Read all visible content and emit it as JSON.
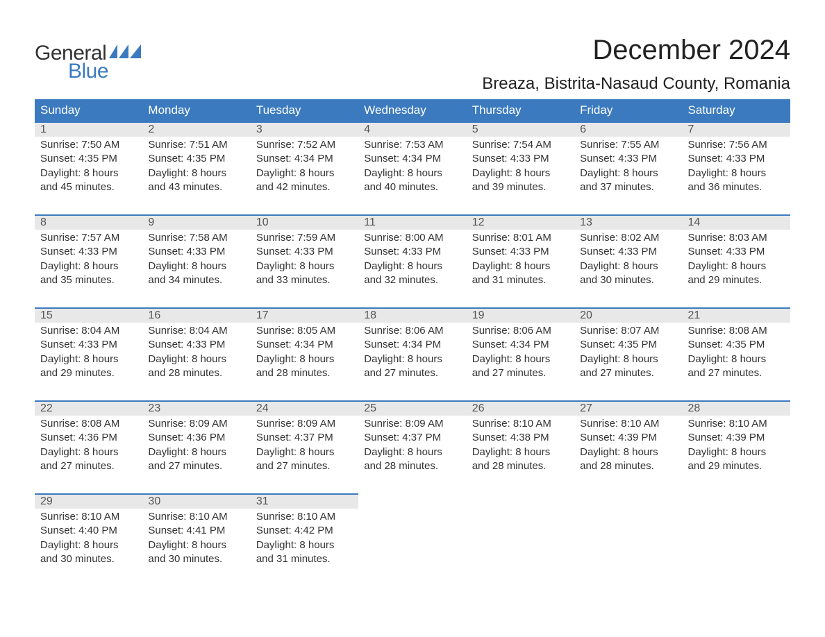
{
  "logo": {
    "text_general": "General",
    "text_blue": "Blue",
    "flag_color": "#3b7abf"
  },
  "header": {
    "month_title": "December 2024",
    "location": "Breaza, Bistrita-Nasaud County, Romania"
  },
  "colors": {
    "header_bg": "#3b7abf",
    "day_number_bg": "#e8e8e8",
    "border": "#3b7abf",
    "text": "#333333",
    "header_text": "#ffffff"
  },
  "calendar": {
    "day_headers": [
      "Sunday",
      "Monday",
      "Tuesday",
      "Wednesday",
      "Thursday",
      "Friday",
      "Saturday"
    ],
    "weeks": [
      [
        {
          "day": "1",
          "sunrise": "Sunrise: 7:50 AM",
          "sunset": "Sunset: 4:35 PM",
          "daylight1": "Daylight: 8 hours",
          "daylight2": "and 45 minutes."
        },
        {
          "day": "2",
          "sunrise": "Sunrise: 7:51 AM",
          "sunset": "Sunset: 4:35 PM",
          "daylight1": "Daylight: 8 hours",
          "daylight2": "and 43 minutes."
        },
        {
          "day": "3",
          "sunrise": "Sunrise: 7:52 AM",
          "sunset": "Sunset: 4:34 PM",
          "daylight1": "Daylight: 8 hours",
          "daylight2": "and 42 minutes."
        },
        {
          "day": "4",
          "sunrise": "Sunrise: 7:53 AM",
          "sunset": "Sunset: 4:34 PM",
          "daylight1": "Daylight: 8 hours",
          "daylight2": "and 40 minutes."
        },
        {
          "day": "5",
          "sunrise": "Sunrise: 7:54 AM",
          "sunset": "Sunset: 4:33 PM",
          "daylight1": "Daylight: 8 hours",
          "daylight2": "and 39 minutes."
        },
        {
          "day": "6",
          "sunrise": "Sunrise: 7:55 AM",
          "sunset": "Sunset: 4:33 PM",
          "daylight1": "Daylight: 8 hours",
          "daylight2": "and 37 minutes."
        },
        {
          "day": "7",
          "sunrise": "Sunrise: 7:56 AM",
          "sunset": "Sunset: 4:33 PM",
          "daylight1": "Daylight: 8 hours",
          "daylight2": "and 36 minutes."
        }
      ],
      [
        {
          "day": "8",
          "sunrise": "Sunrise: 7:57 AM",
          "sunset": "Sunset: 4:33 PM",
          "daylight1": "Daylight: 8 hours",
          "daylight2": "and 35 minutes."
        },
        {
          "day": "9",
          "sunrise": "Sunrise: 7:58 AM",
          "sunset": "Sunset: 4:33 PM",
          "daylight1": "Daylight: 8 hours",
          "daylight2": "and 34 minutes."
        },
        {
          "day": "10",
          "sunrise": "Sunrise: 7:59 AM",
          "sunset": "Sunset: 4:33 PM",
          "daylight1": "Daylight: 8 hours",
          "daylight2": "and 33 minutes."
        },
        {
          "day": "11",
          "sunrise": "Sunrise: 8:00 AM",
          "sunset": "Sunset: 4:33 PM",
          "daylight1": "Daylight: 8 hours",
          "daylight2": "and 32 minutes."
        },
        {
          "day": "12",
          "sunrise": "Sunrise: 8:01 AM",
          "sunset": "Sunset: 4:33 PM",
          "daylight1": "Daylight: 8 hours",
          "daylight2": "and 31 minutes."
        },
        {
          "day": "13",
          "sunrise": "Sunrise: 8:02 AM",
          "sunset": "Sunset: 4:33 PM",
          "daylight1": "Daylight: 8 hours",
          "daylight2": "and 30 minutes."
        },
        {
          "day": "14",
          "sunrise": "Sunrise: 8:03 AM",
          "sunset": "Sunset: 4:33 PM",
          "daylight1": "Daylight: 8 hours",
          "daylight2": "and 29 minutes."
        }
      ],
      [
        {
          "day": "15",
          "sunrise": "Sunrise: 8:04 AM",
          "sunset": "Sunset: 4:33 PM",
          "daylight1": "Daylight: 8 hours",
          "daylight2": "and 29 minutes."
        },
        {
          "day": "16",
          "sunrise": "Sunrise: 8:04 AM",
          "sunset": "Sunset: 4:33 PM",
          "daylight1": "Daylight: 8 hours",
          "daylight2": "and 28 minutes."
        },
        {
          "day": "17",
          "sunrise": "Sunrise: 8:05 AM",
          "sunset": "Sunset: 4:34 PM",
          "daylight1": "Daylight: 8 hours",
          "daylight2": "and 28 minutes."
        },
        {
          "day": "18",
          "sunrise": "Sunrise: 8:06 AM",
          "sunset": "Sunset: 4:34 PM",
          "daylight1": "Daylight: 8 hours",
          "daylight2": "and 27 minutes."
        },
        {
          "day": "19",
          "sunrise": "Sunrise: 8:06 AM",
          "sunset": "Sunset: 4:34 PM",
          "daylight1": "Daylight: 8 hours",
          "daylight2": "and 27 minutes."
        },
        {
          "day": "20",
          "sunrise": "Sunrise: 8:07 AM",
          "sunset": "Sunset: 4:35 PM",
          "daylight1": "Daylight: 8 hours",
          "daylight2": "and 27 minutes."
        },
        {
          "day": "21",
          "sunrise": "Sunrise: 8:08 AM",
          "sunset": "Sunset: 4:35 PM",
          "daylight1": "Daylight: 8 hours",
          "daylight2": "and 27 minutes."
        }
      ],
      [
        {
          "day": "22",
          "sunrise": "Sunrise: 8:08 AM",
          "sunset": "Sunset: 4:36 PM",
          "daylight1": "Daylight: 8 hours",
          "daylight2": "and 27 minutes."
        },
        {
          "day": "23",
          "sunrise": "Sunrise: 8:09 AM",
          "sunset": "Sunset: 4:36 PM",
          "daylight1": "Daylight: 8 hours",
          "daylight2": "and 27 minutes."
        },
        {
          "day": "24",
          "sunrise": "Sunrise: 8:09 AM",
          "sunset": "Sunset: 4:37 PM",
          "daylight1": "Daylight: 8 hours",
          "daylight2": "and 27 minutes."
        },
        {
          "day": "25",
          "sunrise": "Sunrise: 8:09 AM",
          "sunset": "Sunset: 4:37 PM",
          "daylight1": "Daylight: 8 hours",
          "daylight2": "and 28 minutes."
        },
        {
          "day": "26",
          "sunrise": "Sunrise: 8:10 AM",
          "sunset": "Sunset: 4:38 PM",
          "daylight1": "Daylight: 8 hours",
          "daylight2": "and 28 minutes."
        },
        {
          "day": "27",
          "sunrise": "Sunrise: 8:10 AM",
          "sunset": "Sunset: 4:39 PM",
          "daylight1": "Daylight: 8 hours",
          "daylight2": "and 28 minutes."
        },
        {
          "day": "28",
          "sunrise": "Sunrise: 8:10 AM",
          "sunset": "Sunset: 4:39 PM",
          "daylight1": "Daylight: 8 hours",
          "daylight2": "and 29 minutes."
        }
      ],
      [
        {
          "day": "29",
          "sunrise": "Sunrise: 8:10 AM",
          "sunset": "Sunset: 4:40 PM",
          "daylight1": "Daylight: 8 hours",
          "daylight2": "and 30 minutes."
        },
        {
          "day": "30",
          "sunrise": "Sunrise: 8:10 AM",
          "sunset": "Sunset: 4:41 PM",
          "daylight1": "Daylight: 8 hours",
          "daylight2": "and 30 minutes."
        },
        {
          "day": "31",
          "sunrise": "Sunrise: 8:10 AM",
          "sunset": "Sunset: 4:42 PM",
          "daylight1": "Daylight: 8 hours",
          "daylight2": "and 31 minutes."
        },
        null,
        null,
        null,
        null
      ]
    ]
  }
}
